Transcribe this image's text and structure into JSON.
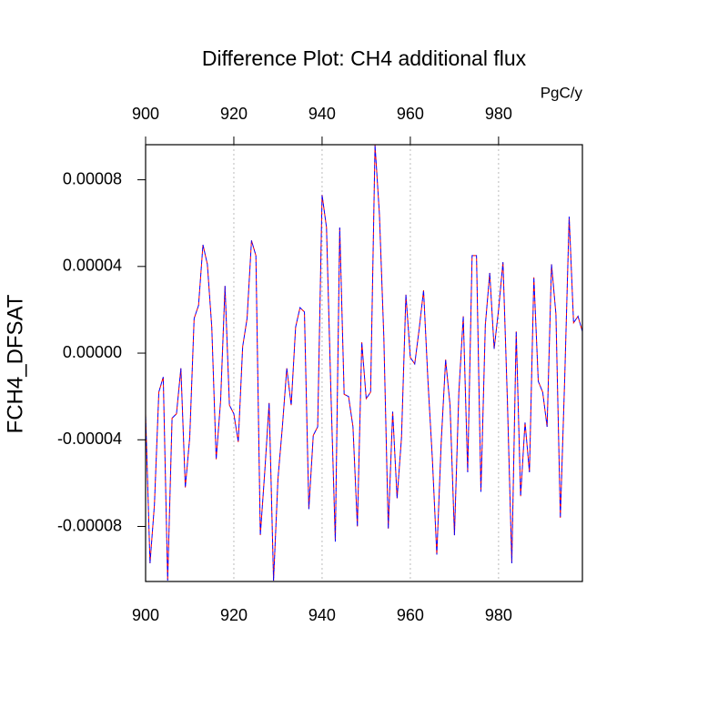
{
  "chart_data": {
    "type": "line",
    "title": "Difference Plot: CH4 additional flux",
    "units": "PgC/y",
    "y_label": "FCH4_DFSAT",
    "x": [
      900,
      901,
      902,
      903,
      904,
      905,
      906,
      907,
      908,
      909,
      910,
      911,
      912,
      913,
      914,
      915,
      916,
      917,
      918,
      919,
      920,
      921,
      922,
      923,
      924,
      925,
      926,
      927,
      928,
      929,
      930,
      931,
      932,
      933,
      934,
      935,
      936,
      937,
      938,
      939,
      940,
      941,
      942,
      943,
      944,
      945,
      946,
      947,
      948,
      949,
      950,
      951,
      952,
      953,
      954,
      955,
      956,
      957,
      958,
      959,
      960,
      961,
      962,
      963,
      964,
      965,
      966,
      967,
      968,
      969,
      970,
      971,
      972,
      973,
      974,
      975,
      976,
      977,
      978,
      979,
      980,
      981,
      982,
      983,
      984,
      985,
      986,
      987,
      988,
      989,
      990,
      991,
      992,
      993,
      994,
      995,
      996,
      997,
      998,
      999
    ],
    "series": [
      {
        "color": "red",
        "dashed": true,
        "values": [
          -2.8e-05,
          -9.7e-05,
          -7e-05,
          -1.8e-05,
          -1.1e-05,
          -0.000105,
          -3e-05,
          -2.8e-05,
          -7e-06,
          -6.2e-05,
          -3.9e-05,
          1.6e-05,
          2.2e-05,
          5e-05,
          4.1e-05,
          1.2e-05,
          -4.9e-05,
          -2.2e-05,
          3.1e-05,
          -2.4e-05,
          -2.8e-05,
          -4.1e-05,
          3e-06,
          1.6e-05,
          5.2e-05,
          4.5e-05,
          -8.4e-05,
          -5.5e-05,
          -2.3e-05,
          -0.000105,
          -5.8e-05,
          -3.4e-05,
          -7e-06,
          -2.4e-05,
          1.2e-05,
          2.1e-05,
          1.9e-05,
          -7.2e-05,
          -3.8e-05,
          -3.4e-05,
          7.3e-05,
          5.8e-05,
          -1.8e-05,
          -8.7e-05,
          5.8e-05,
          -1.9e-05,
          -2e-05,
          -3.4e-05,
          -8e-05,
          5e-06,
          -2.1e-05,
          -1.8e-05,
          9.6e-05,
          6.4e-05,
          7e-06,
          -8.1e-05,
          -2.7e-05,
          -6.7e-05,
          -3.9e-05,
          2.7e-05,
          -2e-06,
          -5e-06,
          1.1e-05,
          2.9e-05,
          -1.3e-05,
          -4.9e-05,
          -9.3e-05,
          -4.1e-05,
          -3e-06,
          -2.4e-05,
          -8.4e-05,
          -1.8e-05,
          1.7e-05,
          -5.5e-05,
          4.5e-05,
          4.5e-05,
          -6.4e-05,
          1.3e-05,
          3.7e-05,
          2e-06,
          2e-05,
          4.2e-05,
          -2.2e-05,
          -9.7e-05,
          1e-05,
          -6.6e-05,
          -3.2e-05,
          -5.5e-05,
          3.5e-05,
          -1.3e-05,
          -1.8e-05,
          -3.4e-05,
          4.1e-05,
          1.8e-05,
          -7.6e-05,
          -1.1e-05,
          6.3e-05,
          1.4e-05,
          1.7e-05,
          1e-05
        ]
      },
      {
        "color": "blue",
        "dashed": true,
        "values": [
          -2.8e-05,
          -9.7e-05,
          -7e-05,
          -1.8e-05,
          -1.1e-05,
          -0.000105,
          -3e-05,
          -2.8e-05,
          -7e-06,
          -6.2e-05,
          -3.9e-05,
          1.6e-05,
          2.2e-05,
          5e-05,
          4.1e-05,
          1.2e-05,
          -4.9e-05,
          -2.2e-05,
          3.1e-05,
          -2.4e-05,
          -2.8e-05,
          -4.1e-05,
          3e-06,
          1.6e-05,
          5.2e-05,
          4.5e-05,
          -8.4e-05,
          -5.5e-05,
          -2.3e-05,
          -0.000105,
          -5.8e-05,
          -3.4e-05,
          -7e-06,
          -2.4e-05,
          1.2e-05,
          2.1e-05,
          1.9e-05,
          -7.2e-05,
          -3.8e-05,
          -3.4e-05,
          7.3e-05,
          5.8e-05,
          -1.8e-05,
          -8.7e-05,
          5.8e-05,
          -1.9e-05,
          -2e-05,
          -3.4e-05,
          -8e-05,
          5e-06,
          -2.1e-05,
          -1.8e-05,
          9.6e-05,
          6.4e-05,
          7e-06,
          -8.1e-05,
          -2.7e-05,
          -6.7e-05,
          -3.9e-05,
          2.7e-05,
          -2e-06,
          -5e-06,
          1.1e-05,
          2.9e-05,
          -1.3e-05,
          -4.9e-05,
          -9.3e-05,
          -4.1e-05,
          -3e-06,
          -2.4e-05,
          -8.4e-05,
          -1.8e-05,
          1.7e-05,
          -5.5e-05,
          4.5e-05,
          4.5e-05,
          -6.4e-05,
          1.3e-05,
          3.7e-05,
          2e-06,
          2e-05,
          4.2e-05,
          -2.2e-05,
          -9.7e-05,
          1e-05,
          -6.6e-05,
          -3.2e-05,
          -5.5e-05,
          3.5e-05,
          -1.3e-05,
          -1.8e-05,
          -3.4e-05,
          4.1e-05,
          1.8e-05,
          -7.6e-05,
          -1.1e-05,
          6.3e-05,
          1.4e-05,
          1.7e-05,
          1e-05
        ]
      }
    ],
    "xlim": [
      900,
      999
    ],
    "xticks": [
      900,
      920,
      940,
      960,
      980
    ],
    "ylim": [
      -0.0001054,
      9.62e-05
    ],
    "yticks": [
      {
        "value": -8e-05,
        "label": "-0.00008"
      },
      {
        "value": -4e-05,
        "label": "-0.00004"
      },
      {
        "value": 0,
        "label": "0.00000"
      },
      {
        "value": 4e-05,
        "label": "0.00004"
      },
      {
        "value": 8e-05,
        "label": "0.00008"
      }
    ],
    "bottom_axis_color": "red",
    "top_axis_color": "blue",
    "grid": "x"
  }
}
